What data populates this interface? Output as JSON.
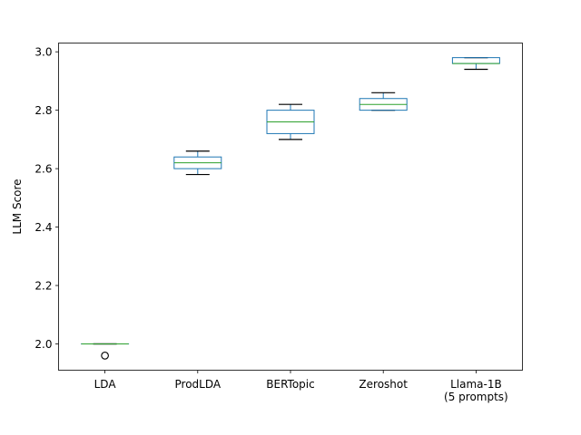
{
  "chart_data": {
    "type": "box",
    "title": "",
    "xlabel": "",
    "ylabel": "LLM Score",
    "ylim": [
      1.91,
      3.03
    ],
    "yticks": [
      "2.0",
      "2.2",
      "2.4",
      "2.6",
      "2.8",
      "3.0"
    ],
    "grid": false,
    "colors": {
      "box": "#1f77b4",
      "median": "#2ca02c",
      "whisker": "#000000",
      "flier": "#000000"
    },
    "categories": [
      {
        "label": [
          "LDA"
        ],
        "whisker_low": 2.0,
        "q1": 2.0,
        "median": 2.0,
        "q3": 2.0,
        "whisker_high": 2.0,
        "outliers": [
          1.96
        ]
      },
      {
        "label": [
          "ProdLDA"
        ],
        "whisker_low": 2.58,
        "q1": 2.6,
        "median": 2.62,
        "q3": 2.64,
        "whisker_high": 2.66,
        "outliers": []
      },
      {
        "label": [
          "BERTopic"
        ],
        "whisker_low": 2.7,
        "q1": 2.72,
        "median": 2.76,
        "q3": 2.8,
        "whisker_high": 2.82,
        "outliers": []
      },
      {
        "label": [
          "Zeroshot"
        ],
        "whisker_low": 2.8,
        "q1": 2.8,
        "median": 2.82,
        "q3": 2.84,
        "whisker_high": 2.86,
        "outliers": []
      },
      {
        "label": [
          "Llama-1B",
          "(5 prompts)"
        ],
        "whisker_low": 2.94,
        "q1": 2.96,
        "median": 2.96,
        "q3": 2.98,
        "whisker_high": 2.98,
        "outliers": []
      }
    ]
  }
}
